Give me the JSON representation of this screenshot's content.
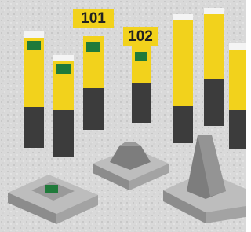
{
  "signs": [
    "101",
    "102"
  ]
}
